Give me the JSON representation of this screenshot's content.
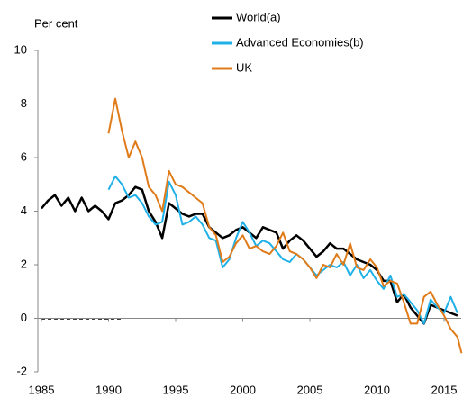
{
  "chart_data": {
    "type": "line",
    "y_label": "Per cent",
    "x": [
      1985,
      1985.5,
      1986,
      1986.5,
      1987,
      1987.5,
      1988,
      1988.5,
      1989,
      1989.5,
      1990,
      1990.5,
      1991,
      1991.5,
      1992,
      1992.5,
      1993,
      1993.5,
      1994,
      1994.5,
      1995,
      1995.5,
      1996,
      1996.5,
      1997,
      1997.5,
      1998,
      1998.5,
      1999,
      1999.5,
      2000,
      2000.5,
      2001,
      2001.5,
      2002,
      2002.5,
      2003,
      2003.5,
      2004,
      2004.5,
      2005,
      2005.5,
      2006,
      2006.5,
      2007,
      2007.5,
      2008,
      2008.5,
      2009,
      2009.5,
      2010,
      2010.5,
      2011,
      2011.5,
      2012,
      2012.5,
      2013,
      2013.5,
      2014,
      2014.5,
      2015,
      2015.5,
      2016,
      2016.3
    ],
    "series": [
      {
        "name": "World(a)",
        "color": "#000000",
        "values": [
          4.1,
          4.4,
          4.6,
          4.2,
          4.5,
          4.0,
          4.5,
          4.0,
          4.2,
          4.0,
          3.7,
          4.3,
          4.4,
          4.6,
          4.9,
          4.8,
          4.0,
          3.6,
          3.0,
          4.3,
          4.1,
          3.9,
          3.8,
          3.9,
          3.9,
          3.4,
          3.2,
          3.0,
          3.1,
          3.3,
          3.4,
          3.2,
          3.0,
          3.4,
          3.3,
          3.2,
          2.6,
          2.9,
          3.1,
          2.9,
          2.6,
          2.3,
          2.5,
          2.8,
          2.6,
          2.6,
          2.4,
          2.2,
          2.1,
          2.0,
          1.8,
          1.4,
          1.4,
          0.6,
          0.9,
          0.4,
          0.1,
          -0.2,
          0.5,
          0.4,
          0.3,
          0.2,
          0.1,
          null
        ]
      },
      {
        "name": "Advanced Economies(b)",
        "color": "#1fb0e8",
        "values": [
          null,
          null,
          null,
          null,
          null,
          null,
          null,
          null,
          null,
          null,
          4.8,
          5.3,
          5.0,
          4.5,
          4.6,
          4.3,
          3.8,
          3.5,
          3.6,
          5.1,
          4.6,
          3.5,
          3.6,
          3.8,
          3.5,
          3.0,
          2.9,
          1.9,
          2.2,
          3.0,
          3.6,
          3.2,
          2.7,
          2.9,
          2.8,
          2.5,
          2.2,
          2.1,
          2.4,
          2.2,
          1.9,
          1.6,
          1.8,
          2.0,
          1.9,
          2.1,
          1.6,
          2.0,
          1.5,
          1.8,
          1.4,
          1.1,
          1.6,
          0.8,
          0.9,
          0.6,
          0.3,
          -0.2,
          0.7,
          0.4,
          0.2,
          0.8,
          0.2,
          null
        ]
      },
      {
        "name": "UK",
        "color": "#e07b1a",
        "values": [
          null,
          null,
          null,
          null,
          null,
          null,
          null,
          null,
          null,
          null,
          6.9,
          8.2,
          7.0,
          6.0,
          6.6,
          6.0,
          4.9,
          4.6,
          4.0,
          5.5,
          5.0,
          4.9,
          4.7,
          4.5,
          4.3,
          3.4,
          3.1,
          2.1,
          2.3,
          2.8,
          3.1,
          2.6,
          2.7,
          2.5,
          2.4,
          2.7,
          3.2,
          2.5,
          2.4,
          2.2,
          1.9,
          1.5,
          2.0,
          1.9,
          2.4,
          2.0,
          2.8,
          1.9,
          1.8,
          2.2,
          1.9,
          1.2,
          1.4,
          1.3,
          0.6,
          -0.2,
          -0.2,
          0.8,
          1.0,
          0.5,
          0.1,
          -0.4,
          -0.7,
          -1.3
        ]
      }
    ],
    "xlim": [
      1985,
      2016.4
    ],
    "xticks": [
      1985,
      1990,
      1995,
      2000,
      2005,
      2010,
      2015
    ],
    "ylim": [
      -2,
      10
    ],
    "yticks": [
      -2,
      0,
      2,
      4,
      6,
      8,
      10
    ],
    "legend": "top"
  }
}
